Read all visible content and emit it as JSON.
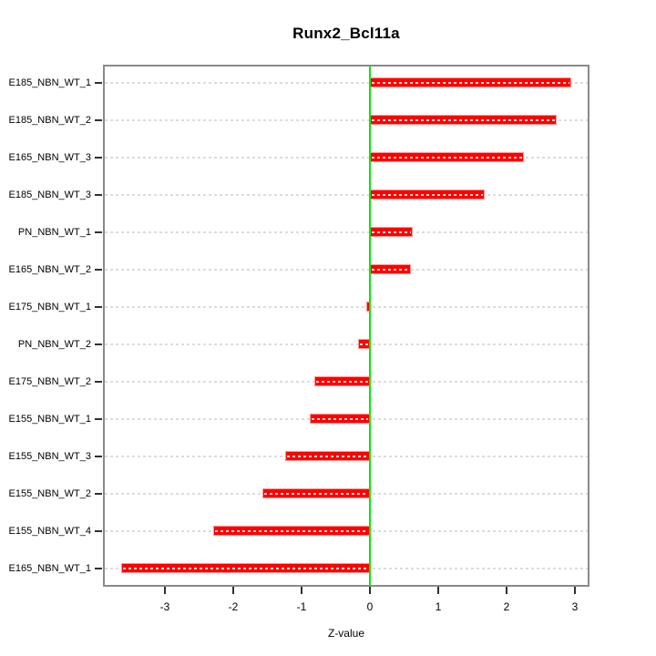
{
  "page": {
    "background": "#ffffff"
  },
  "chart_data": {
    "type": "bar",
    "orientation": "horizontal",
    "title": "Runx2_Bcl11a",
    "xlabel": "Z-value",
    "categories": [
      "E185_NBN_WT_1",
      "E185_NBN_WT_2",
      "E165_NBN_WT_3",
      "E185_NBN_WT_3",
      "PN_NBN_WT_1",
      "E165_NBN_WT_2",
      "E175_NBN_WT_1",
      "PN_NBN_WT_2",
      "E175_NBN_WT_2",
      "E155_NBN_WT_1",
      "E155_NBN_WT_3",
      "E155_NBN_WT_2",
      "E155_NBN_WT_4",
      "E165_NBN_WT_1"
    ],
    "values": [
      2.95,
      2.73,
      2.26,
      1.68,
      0.63,
      0.6,
      -0.05,
      -0.17,
      -0.81,
      -0.88,
      -1.24,
      -1.57,
      -2.29,
      -3.64
    ],
    "xticks": [
      -3,
      -2,
      -1,
      0,
      1,
      2,
      3
    ],
    "xlim": [
      -3.9,
      3.2
    ],
    "grid": "dotted horizontal line per category",
    "legend": "none",
    "zero_reference_line": 0,
    "colors": {
      "bar": "#ff0000",
      "bar_edge": "#ff9494",
      "bar_dash_overlay": "#ffffff",
      "zero_line": "#00ee00",
      "grid": "#dcdcdc",
      "box": "#8a8a8a",
      "tick": "#303030",
      "text": "#000000"
    }
  }
}
